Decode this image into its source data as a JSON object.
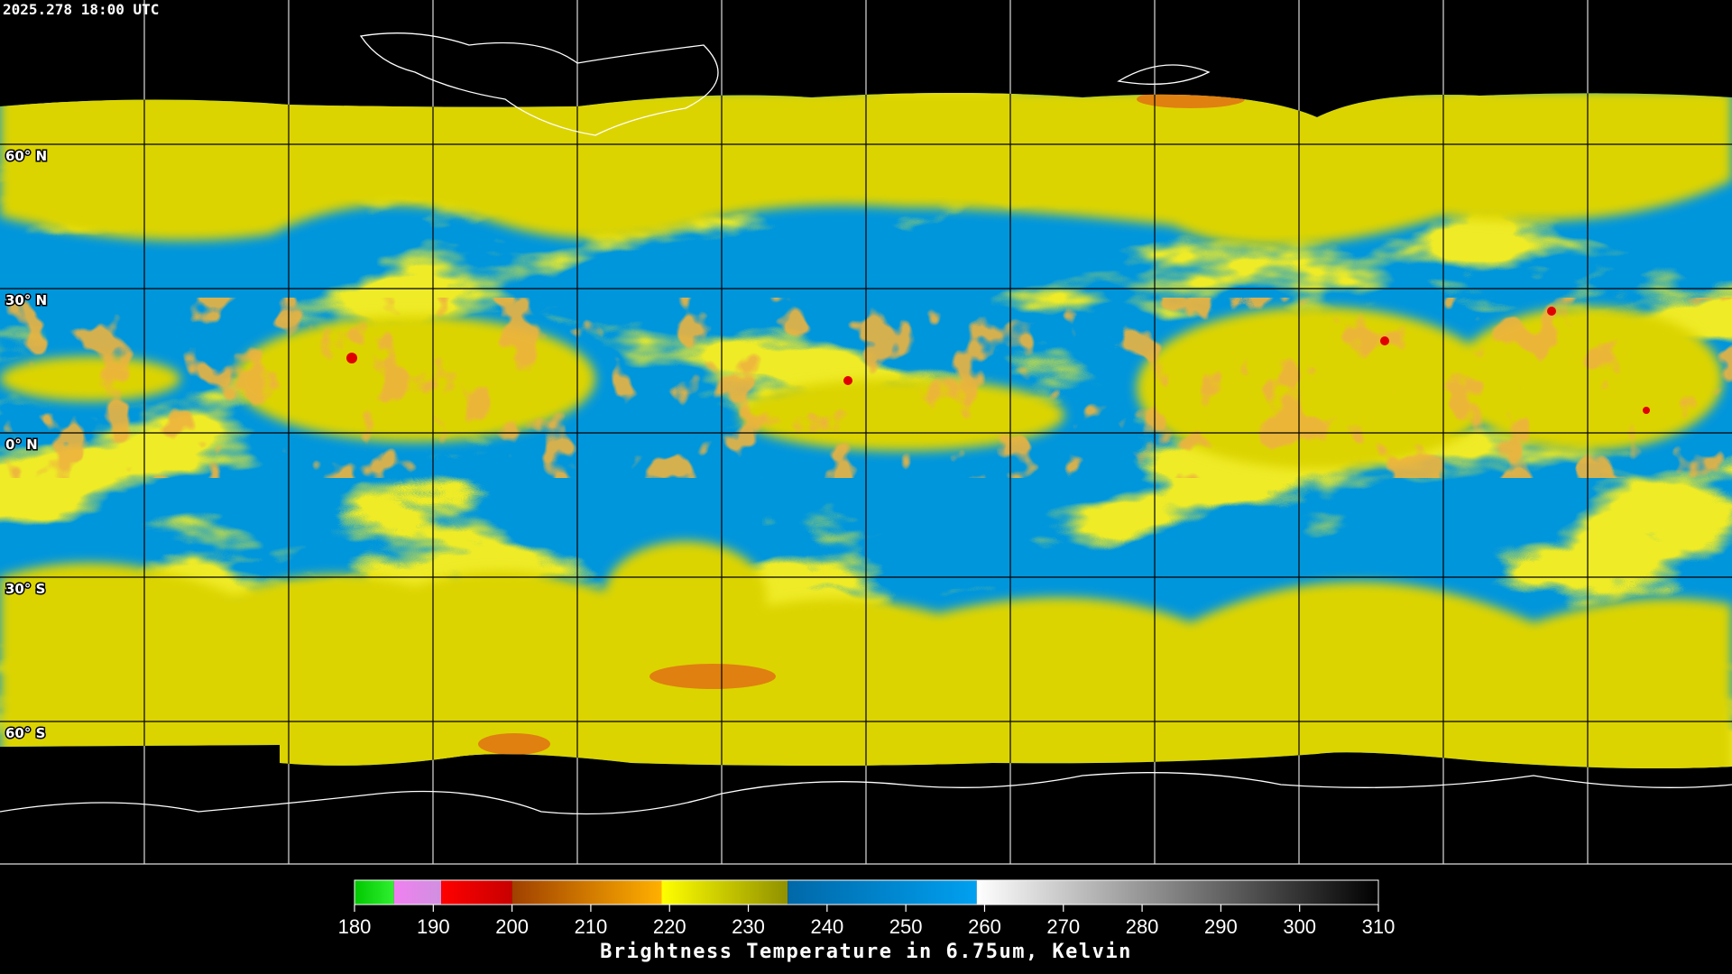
{
  "header": {
    "timestamp": "2025.278 18:00 UTC"
  },
  "map": {
    "lat_labels": [
      {
        "value": 60,
        "label": "60° N"
      },
      {
        "value": 30,
        "label": "30° N"
      },
      {
        "value": 0,
        "label": "0° N"
      },
      {
        "value": -30,
        "label": "30° S"
      },
      {
        "value": -60,
        "label": "60° S"
      }
    ]
  },
  "colorbar": {
    "title": "Brightness Temperature in 6.75um, Kelvin",
    "range": [
      180,
      310
    ],
    "ticks": [
      180,
      190,
      200,
      210,
      220,
      230,
      240,
      250,
      260,
      270,
      280,
      290,
      300,
      310
    ],
    "segments": [
      {
        "from": 180,
        "to": 185,
        "colors": [
          "#00c800",
          "#30f030"
        ]
      },
      {
        "from": 185,
        "to": 191,
        "colors": [
          "#f080f0",
          "#d090e0"
        ]
      },
      {
        "from": 191,
        "to": 200,
        "colors": [
          "#ff0000",
          "#c80000"
        ]
      },
      {
        "from": 200,
        "to": 219,
        "colors": [
          "#a04000",
          "#ffb000"
        ]
      },
      {
        "from": 219,
        "to": 235,
        "colors": [
          "#ffff00",
          "#909000"
        ]
      },
      {
        "from": 235,
        "to": 259,
        "colors": [
          "#0068a8",
          "#00a0f0"
        ]
      },
      {
        "from": 259,
        "to": 310,
        "colors": [
          "#ffffff",
          "#000000"
        ]
      }
    ]
  }
}
